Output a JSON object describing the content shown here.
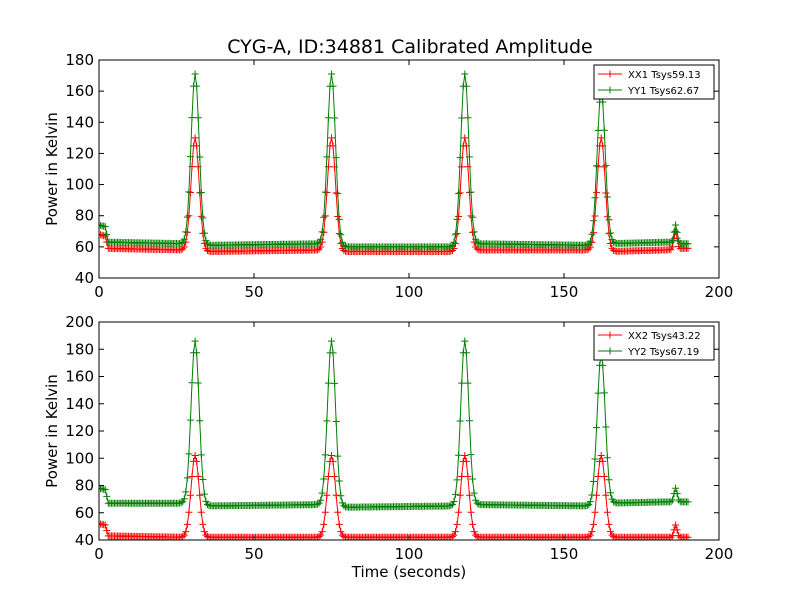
{
  "title": "CYG-A, ID:34881 Calibrated Amplitude",
  "colors": {
    "red": "#ff0000",
    "green": "#007f00"
  },
  "chart_data": [
    {
      "type": "line",
      "ylabel": "Power in Kelvin",
      "xlabel": "",
      "xlim": [
        0,
        200
      ],
      "ylim": [
        40,
        180
      ],
      "xticks": [
        0,
        50,
        100,
        150,
        200
      ],
      "yticks": [
        40,
        60,
        80,
        100,
        120,
        140,
        160,
        180
      ],
      "legend_position": "top-right",
      "series": [
        {
          "name": "XX1 Tsys59.13",
          "color": "#ff0000",
          "marker": "+",
          "baseline": [
            [
              0,
              68
            ],
            [
              2,
              67
            ],
            [
              3,
              59
            ],
            [
              28,
              58
            ],
            [
              35,
              57
            ],
            [
              72,
              58
            ],
            [
              78,
              57
            ],
            [
              115,
              57
            ],
            [
              121,
              58
            ],
            [
              158,
              58
            ],
            [
              164,
              57
            ],
            [
              183,
              58
            ],
            [
              188,
              59
            ],
            [
              190,
              59
            ]
          ],
          "peaks": [
            [
              31,
              130
            ],
            [
              75,
              130
            ],
            [
              118,
              130
            ],
            [
              162,
              130
            ],
            [
              186,
              70
            ]
          ]
        },
        {
          "name": "YY1 Tsys62.67",
          "color": "#007f00",
          "marker": "+",
          "baseline": [
            [
              0,
              74
            ],
            [
              2,
              73
            ],
            [
              3,
              63
            ],
            [
              28,
              62
            ],
            [
              35,
              61
            ],
            [
              72,
              62
            ],
            [
              78,
              60
            ],
            [
              115,
              60
            ],
            [
              121,
              62
            ],
            [
              158,
              61
            ],
            [
              164,
              62
            ],
            [
              183,
              63
            ],
            [
              188,
              62
            ],
            [
              190,
              62
            ]
          ],
          "peaks": [
            [
              31,
              171
            ],
            [
              75,
              171
            ],
            [
              118,
              171
            ],
            [
              162,
              160
            ],
            [
              186,
              74
            ]
          ]
        }
      ]
    },
    {
      "type": "line",
      "ylabel": "Power in Kelvin",
      "xlabel": "Time (seconds)",
      "xlim": [
        0,
        200
      ],
      "ylim": [
        40,
        200
      ],
      "xticks": [
        0,
        50,
        100,
        150,
        200
      ],
      "yticks": [
        40,
        60,
        80,
        100,
        120,
        140,
        160,
        180,
        200
      ],
      "legend_position": "top-right",
      "series": [
        {
          "name": "XX2 Tsys43.22",
          "color": "#ff0000",
          "marker": "+",
          "baseline": [
            [
              0,
              52
            ],
            [
              2,
              51
            ],
            [
              3,
              43
            ],
            [
              28,
              42
            ],
            [
              35,
              42
            ],
            [
              72,
              42
            ],
            [
              78,
              42
            ],
            [
              115,
              42
            ],
            [
              121,
              42
            ],
            [
              158,
              42
            ],
            [
              164,
              42
            ],
            [
              183,
              42
            ],
            [
              188,
              42
            ],
            [
              190,
              42
            ]
          ],
          "peaks": [
            [
              31,
              102
            ],
            [
              75,
              102
            ],
            [
              118,
              102
            ],
            [
              162,
              102
            ],
            [
              186,
              51
            ]
          ]
        },
        {
          "name": "YY2 Tsys67.19",
          "color": "#007f00",
          "marker": "+",
          "baseline": [
            [
              0,
              78
            ],
            [
              2,
              77
            ],
            [
              3,
              67
            ],
            [
              28,
              67
            ],
            [
              35,
              65
            ],
            [
              72,
              66
            ],
            [
              78,
              64
            ],
            [
              115,
              65
            ],
            [
              121,
              66
            ],
            [
              158,
              65
            ],
            [
              164,
              67
            ],
            [
              183,
              68
            ],
            [
              188,
              68
            ],
            [
              190,
              68
            ]
          ],
          "peaks": [
            [
              31,
              186
            ],
            [
              75,
              186
            ],
            [
              118,
              186
            ],
            [
              162,
              176
            ],
            [
              186,
              78
            ]
          ]
        }
      ]
    }
  ]
}
